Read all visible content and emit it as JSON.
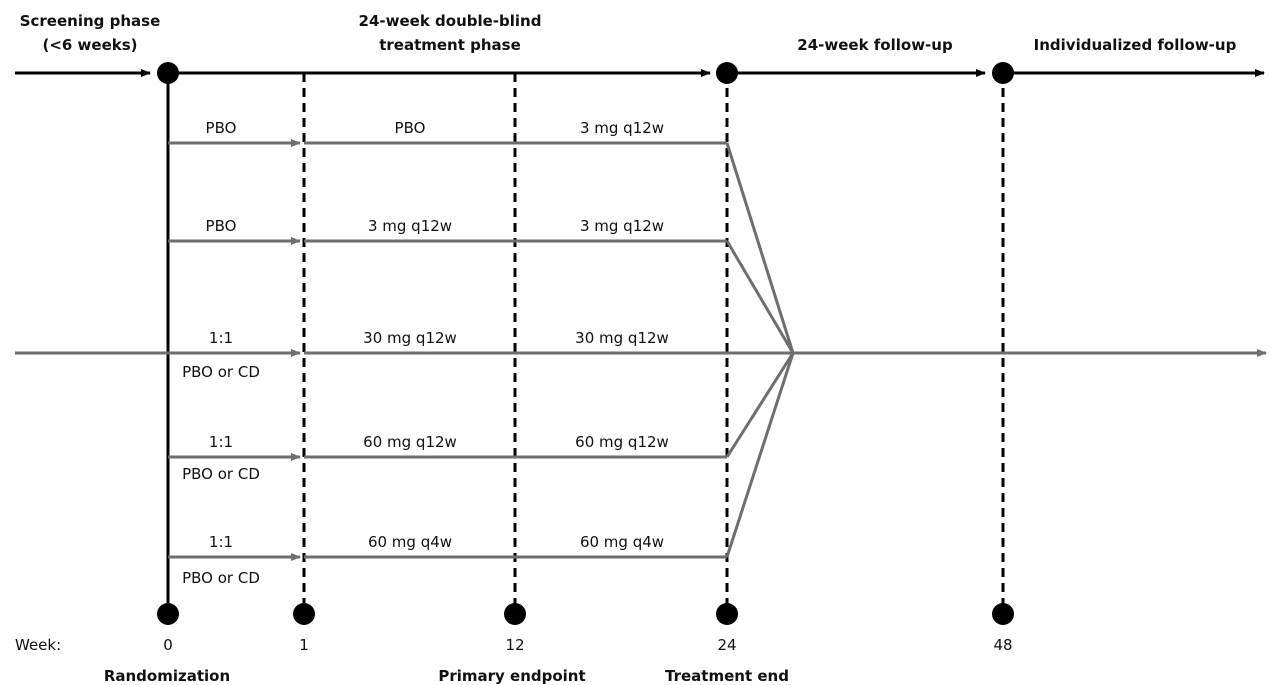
{
  "phases": {
    "screening_line1": "Screening phase",
    "screening_line2": "(<6 weeks)",
    "treatment_line1": "24-week double-blind",
    "treatment_line2": "treatment phase",
    "followup": "24-week follow-up",
    "individualized": "Individualized follow-up"
  },
  "arms": [
    {
      "start_top": "PBO",
      "start_bottom": "",
      "seg1": "PBO",
      "seg2": "3 mg q12w"
    },
    {
      "start_top": "PBO",
      "start_bottom": "",
      "seg1": "3 mg q12w",
      "seg2": "3 mg q12w"
    },
    {
      "start_top": "1:1",
      "start_bottom": "PBO or CD",
      "seg1": "30 mg q12w",
      "seg2": "30 mg q12w"
    },
    {
      "start_top": "1:1",
      "start_bottom": "PBO or CD",
      "seg1": "60 mg q12w",
      "seg2": "60 mg q12w"
    },
    {
      "start_top": "1:1",
      "start_bottom": "PBO or CD",
      "seg1": "60 mg q4w",
      "seg2": "60 mg q4w"
    }
  ],
  "weeks": {
    "label": "Week:",
    "w0": "0",
    "w1": "1",
    "w12": "12",
    "w24": "24",
    "w48": "48"
  },
  "milestones": {
    "randomization": "Randomization",
    "primary_endpoint": "Primary endpoint",
    "treatment_end": "Treatment end"
  },
  "colors": {
    "timeline": "#000000",
    "arms": "#6e6e6e"
  }
}
